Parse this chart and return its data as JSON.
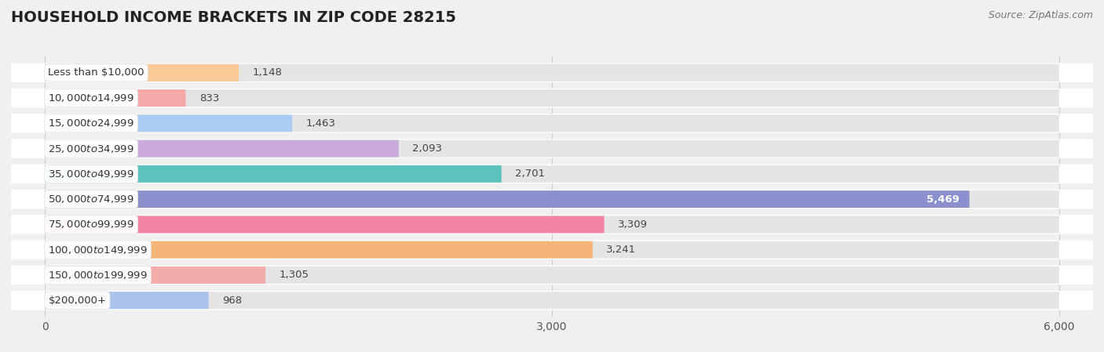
{
  "title": "HOUSEHOLD INCOME BRACKETS IN ZIP CODE 28215",
  "source_text": "Source: ZipAtlas.com",
  "categories": [
    "Less than $10,000",
    "$10,000 to $14,999",
    "$15,000 to $24,999",
    "$25,000 to $34,999",
    "$35,000 to $49,999",
    "$50,000 to $74,999",
    "$75,000 to $99,999",
    "$100,000 to $149,999",
    "$150,000 to $199,999",
    "$200,000+"
  ],
  "values": [
    1148,
    833,
    1463,
    2093,
    2701,
    5469,
    3309,
    3241,
    1305,
    968
  ],
  "bar_colors": [
    "#FACB96",
    "#F5A8A8",
    "#AACBF2",
    "#C9AADB",
    "#5DC2BB",
    "#8B8FCC",
    "#F484A4",
    "#F5B578",
    "#F2ACAA",
    "#AAC3EC"
  ],
  "row_bg_color": "#FFFFFF",
  "bar_bg_color": "#E4E4E4",
  "page_bg_color": "#F0F0F0",
  "xlim_min": -200,
  "xlim_max": 6200,
  "xticks": [
    0,
    3000,
    6000
  ],
  "title_fontsize": 14,
  "label_fontsize": 9.5,
  "value_fontsize": 9.5,
  "source_fontsize": 9
}
